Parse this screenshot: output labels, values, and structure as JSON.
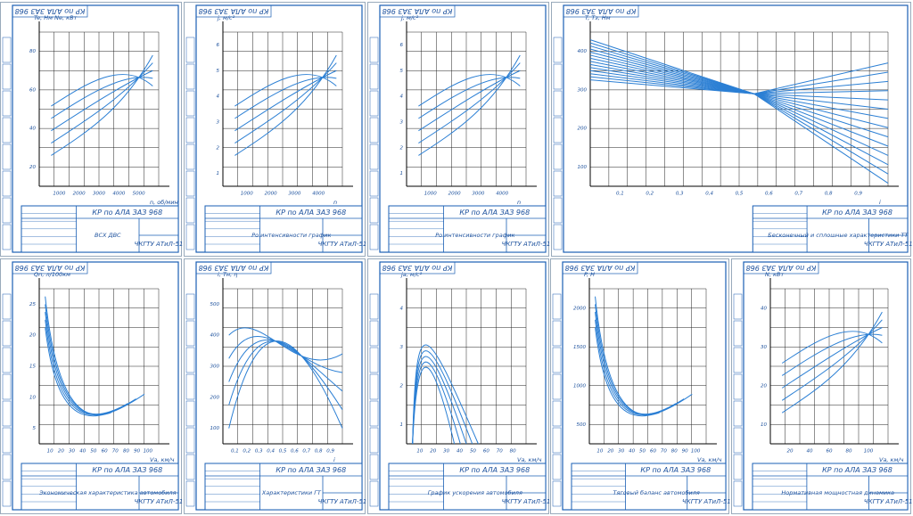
{
  "sheets": [
    {
      "stamp": "КР по АЛА ЗАЗ 968",
      "title": "КР по АЛА ЗАЗ 968",
      "name": "ВСХ ДВС",
      "code": "ЧКГТУ АТиЛ-51",
      "y_label": "Te, Нм   Ne, кВт",
      "x_label": "n, об/мин",
      "x_ticks": [
        "1000",
        "2000",
        "3000",
        "4000",
        "5000"
      ],
      "y_ticks": [
        "80",
        "60",
        "40",
        "20"
      ]
    },
    {
      "stamp": "КР по АЛА ЗАЗ 968",
      "title": "КР по АЛА ЗАЗ 968",
      "name": "Ро интенсивности график",
      "code": "ЧКГТУ АТиЛ-51",
      "y_label": "j, м/с²",
      "x_label": "n",
      "x_ticks": [
        "1000",
        "2000",
        "3000",
        "4000"
      ],
      "y_ticks": [
        "6",
        "5",
        "4",
        "3",
        "2",
        "1"
      ]
    },
    {
      "stamp": "КР по АЛА ЗАЗ 968",
      "title": "КР по АЛА ЗАЗ 968",
      "name": "Ро интенсивности график",
      "code": "ЧКГТУ АТиЛ-51",
      "y_label": "j, м/с²",
      "x_label": "n",
      "x_ticks": [
        "1000",
        "2000",
        "3000",
        "4000"
      ],
      "y_ticks": [
        "6",
        "5",
        "4",
        "3",
        "2",
        "1"
      ]
    },
    {
      "stamp": "КР по АЛА ЗАЗ 968",
      "title": "КР по АЛА ЗАЗ 968",
      "name": "Бесконечный и сплошные характеристики ТТ",
      "code": "ЧКГТУ АТиЛ-51",
      "y_label": "T, Tз, Нм",
      "x_label": "i",
      "x_ticks": [
        "0,1",
        "0,2",
        "0,3",
        "0,4",
        "0,5",
        "0,6",
        "0,7",
        "0,8",
        "0,9"
      ],
      "y_ticks": [
        "400",
        "300",
        "200",
        "100"
      ]
    },
    {
      "stamp": "КР по АЛА ЗАЗ 968",
      "title": "КР по АЛА ЗАЗ 968",
      "name": "Экономическая характеристика автомобиля",
      "code": "ЧКГТУ АТиЛ-51",
      "y_label": "Qп, л/100км",
      "x_label": "Vа, км/ч",
      "x_ticks": [
        "10",
        "20",
        "30",
        "40",
        "50",
        "60",
        "70",
        "80",
        "90",
        "100"
      ],
      "y_ticks": [
        "25",
        "20",
        "15",
        "10",
        "5"
      ]
    },
    {
      "stamp": "КР по АЛА ЗАЗ 968",
      "title": "КР по АЛА ЗАЗ 968",
      "name": "Характеристики ГТ",
      "code": "ЧКГТУ АТиЛ-51",
      "y_label": "i, Tн, η",
      "x_label": "i",
      "x_ticks": [
        "0,1",
        "0,2",
        "0,3",
        "0,4",
        "0,5",
        "0,6",
        "0,7",
        "0,8",
        "0,9"
      ],
      "y_ticks": [
        "500",
        "400",
        "300",
        "200",
        "100"
      ]
    },
    {
      "stamp": "КР по АЛА ЗАЗ 968",
      "title": "КР по АЛА ЗАЗ 968",
      "name": "График ускорения автомобиля",
      "code": "ЧКГТУ АТиЛ-51",
      "y_label": "jа, м/с²",
      "x_label": "Vа, км/ч",
      "x_ticks": [
        "10",
        "20",
        "30",
        "40",
        "50",
        "60",
        "70",
        "80"
      ],
      "y_ticks": [
        "4",
        "3",
        "2",
        "1"
      ]
    },
    {
      "stamp": "КР по АЛА ЗАЗ 968",
      "title": "КР по АЛА ЗАЗ 968",
      "name": "Тяговый баланс автомобиля",
      "code": "ЧКГТУ АТиЛ-51",
      "y_label": "P, Н",
      "x_label": "Vа, км/ч",
      "x_ticks": [
        "10",
        "20",
        "30",
        "40",
        "50",
        "60",
        "70",
        "80",
        "90",
        "100"
      ],
      "y_ticks": [
        "2000",
        "1500",
        "1000",
        "500"
      ]
    },
    {
      "stamp": "КР по АЛА ЗАЗ 968",
      "title": "КР по АЛА ЗАЗ 968",
      "name": "Нормативная мощностная динамика",
      "code": "ЧКГТУ АТиЛ-51",
      "y_label": "N, кВт",
      "x_label": "Vа, км/ч",
      "x_ticks": [
        "20",
        "40",
        "60",
        "80",
        "100"
      ],
      "y_ticks": [
        "40",
        "30",
        "20",
        "10"
      ]
    }
  ]
}
